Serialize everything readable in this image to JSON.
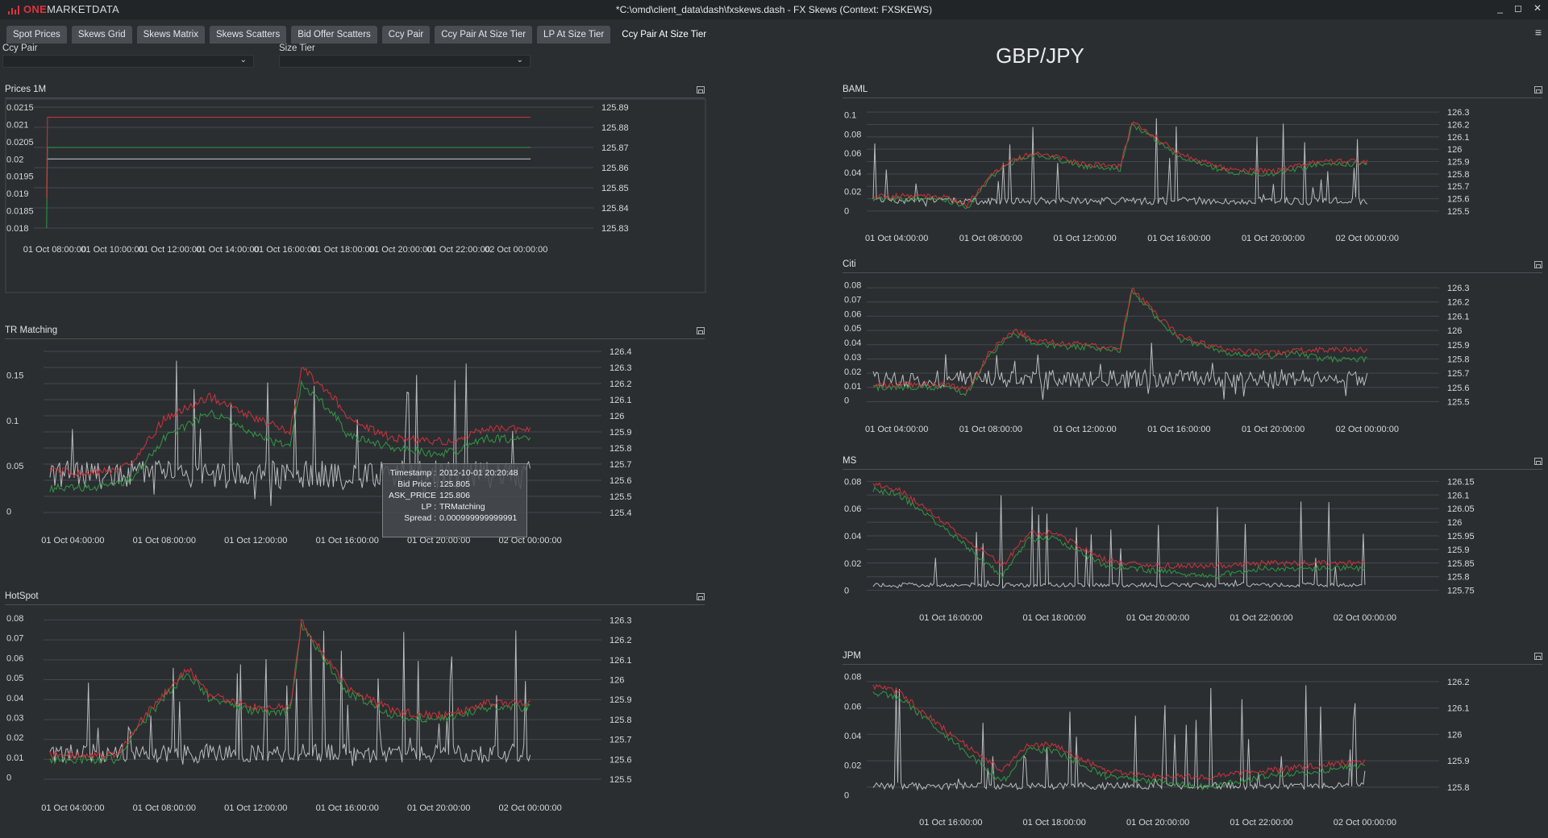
{
  "window": {
    "app_brand_one": "ONE",
    "app_brand_rest": "MARKETDATA",
    "title": "*C:\\omd\\client_data\\dash\\fxskews.dash - FX Skews (Context: FXSKEWS)",
    "controls": {
      "minimize": "_",
      "restore": "◻",
      "close": "✕"
    }
  },
  "tabs": [
    {
      "label": "Spot Prices",
      "active": false
    },
    {
      "label": "Skews Grid",
      "active": false
    },
    {
      "label": "Skews Matrix",
      "active": false
    },
    {
      "label": "Skews Scatters",
      "active": false
    },
    {
      "label": "Bid Offer Scatters",
      "active": false
    },
    {
      "label": "Ccy Pair",
      "active": false
    },
    {
      "label": "Ccy Pair At Size Tier",
      "active": false
    },
    {
      "label": "LP At Size Tier",
      "active": false
    },
    {
      "label": "Ccy Pair At Size Tier",
      "active": true
    }
  ],
  "filters": {
    "ccy_pair": {
      "label": "Ccy Pair",
      "value": ""
    },
    "size_tier": {
      "label": "Size Tier",
      "value": ""
    }
  },
  "page_title": "GBP/JPY",
  "colors": {
    "ask": "#d0323a",
    "bid": "#2f9a44",
    "spread": "#c9cbce",
    "grid": "#44484d"
  },
  "tooltip": {
    "rows": [
      {
        "key": "Timestamp :",
        "value": "2012-10-01 20:20:48"
      },
      {
        "key": "Bid Price :",
        "value": "125.805"
      },
      {
        "key": "ASK_PRICE :",
        "value": "125.806"
      },
      {
        "key": "LP :",
        "value": "TRMatching"
      },
      {
        "key": "Spread :",
        "value": "0.000999999999991"
      }
    ]
  },
  "chart_data": [
    {
      "id": "prices1m",
      "title": "Prices 1M",
      "type": "line",
      "x_ticks": [
        "01 Oct 08:00:00",
        "01 Oct 10:00:00",
        "01 Oct 12:00:00",
        "01 Oct 14:00:00",
        "01 Oct 16:00:00",
        "01 Oct 18:00:00",
        "01 Oct 20:00:00",
        "01 Oct 22:00:00",
        "02 Oct 00:00:00"
      ],
      "y_left_ticks": [
        "0.0215",
        "0.021",
        "0.0205",
        "0.02",
        "0.0195",
        "0.019",
        "0.0185",
        "0.018"
      ],
      "y_right_ticks": [
        "125.89",
        "125.88",
        "125.87",
        "125.86",
        "125.85",
        "125.84",
        "125.83"
      ],
      "y_left_range": [
        0.018,
        0.0215
      ],
      "y_right_range": [
        125.83,
        125.89
      ],
      "x_range": [
        "2012-10-01 07:30",
        "2012-10-02 01:00"
      ],
      "ask": [
        [
          "2012-10-01 07:43",
          125.845
        ],
        [
          "2012-10-01 07:45",
          125.885
        ],
        [
          "2012-10-02 00:30",
          125.885
        ]
      ],
      "bid": [
        [
          "2012-10-01 07:43",
          125.83
        ],
        [
          "2012-10-01 07:45",
          125.87
        ],
        [
          "2012-10-02 00:30",
          125.87
        ]
      ],
      "spread": [
        [
          "2012-10-01 07:43",
          0.02
        ],
        [
          "2012-10-02 00:30",
          0.02
        ]
      ]
    },
    {
      "id": "trmatching",
      "title": "TR Matching",
      "type": "line",
      "x_ticks": [
        "01 Oct 04:00:00",
        "01 Oct 08:00:00",
        "01 Oct 12:00:00",
        "01 Oct 16:00:00",
        "01 Oct 20:00:00",
        "02 Oct 00:00:00"
      ],
      "y_left_ticks": [
        "0.15",
        "0.1",
        "0.05",
        "0"
      ],
      "y_right_ticks": [
        "126.4",
        "126.3",
        "126.2",
        "126.1",
        "126",
        "125.9",
        "125.8",
        "125.7",
        "125.6",
        "125.5",
        "125.4"
      ],
      "y_left_range": [
        -0.005,
        0.18
      ],
      "y_right_range": [
        125.38,
        126.42
      ],
      "x_range": [
        "2012-10-01 03:00",
        "2012-10-02 01:00"
      ],
      "ask": [
        [
          "03:00",
          125.66
        ],
        [
          "05:00",
          125.64
        ],
        [
          "06:30",
          125.7
        ],
        [
          "08:00",
          125.98
        ],
        [
          "10:00",
          126.12
        ],
        [
          "12:00",
          125.98
        ],
        [
          "13:30",
          125.9
        ],
        [
          "14:00",
          126.3
        ],
        [
          "15:30",
          126.1
        ],
        [
          "16:00",
          125.98
        ],
        [
          "18:00",
          125.86
        ],
        [
          "20:00",
          125.84
        ],
        [
          "21:00",
          125.86
        ],
        [
          "22:00",
          125.92
        ],
        [
          "24:00",
          125.91
        ]
      ],
      "bid": [
        [
          "03:00",
          125.55
        ],
        [
          "05:00",
          125.56
        ],
        [
          "06:30",
          125.6
        ],
        [
          "08:00",
          125.86
        ],
        [
          "10:00",
          126.02
        ],
        [
          "12:00",
          125.88
        ],
        [
          "13:30",
          125.8
        ],
        [
          "14:00",
          126.2
        ],
        [
          "15:30",
          126.0
        ],
        [
          "16:00",
          125.88
        ],
        [
          "18:00",
          125.8
        ],
        [
          "20:00",
          125.76
        ],
        [
          "21:00",
          125.79
        ],
        [
          "22:00",
          125.86
        ],
        [
          "24:00",
          125.85
        ]
      ],
      "spread_level": 0.04,
      "spread_max": 0.17
    },
    {
      "id": "hotspot",
      "title": "HotSpot",
      "type": "line",
      "x_ticks": [
        "01 Oct 04:00:00",
        "01 Oct 08:00:00",
        "01 Oct 12:00:00",
        "01 Oct 16:00:00",
        "01 Oct 20:00:00",
        "02 Oct 00:00:00"
      ],
      "y_left_ticks": [
        "0.08",
        "0.07",
        "0.06",
        "0.05",
        "0.04",
        "0.03",
        "0.02",
        "0.01",
        "0"
      ],
      "y_right_ticks": [
        "126.3",
        "126.2",
        "126.1",
        "126",
        "125.9",
        "125.8",
        "125.7",
        "125.6",
        "125.5"
      ],
      "y_left_range": [
        -0.003,
        0.082
      ],
      "y_right_range": [
        125.48,
        126.33
      ],
      "x_range": [
        "2012-10-01 03:00",
        "2012-10-02 01:00"
      ],
      "ask": [
        [
          "03:00",
          125.62
        ],
        [
          "06:00",
          125.62
        ],
        [
          "07:00",
          125.8
        ],
        [
          "09:00",
          126.06
        ],
        [
          "10:00",
          125.92
        ],
        [
          "12:00",
          125.86
        ],
        [
          "13:30",
          125.86
        ],
        [
          "14:00",
          126.3
        ],
        [
          "15:00",
          126.12
        ],
        [
          "16:00",
          125.96
        ],
        [
          "18:00",
          125.84
        ],
        [
          "20:00",
          125.82
        ],
        [
          "21:00",
          125.84
        ],
        [
          "22:00",
          125.88
        ],
        [
          "24:00",
          125.88
        ]
      ],
      "bid": [
        [
          "03:00",
          125.6
        ],
        [
          "06:00",
          125.6
        ],
        [
          "07:00",
          125.78
        ],
        [
          "09:00",
          126.04
        ],
        [
          "10:00",
          125.9
        ],
        [
          "12:00",
          125.84
        ],
        [
          "13:30",
          125.84
        ],
        [
          "14:00",
          126.28
        ],
        [
          "15:00",
          126.1
        ],
        [
          "16:00",
          125.94
        ],
        [
          "18:00",
          125.82
        ],
        [
          "20:00",
          125.8
        ],
        [
          "21:00",
          125.82
        ],
        [
          "22:00",
          125.86
        ],
        [
          "24:00",
          125.86
        ]
      ],
      "spread_level": 0.012,
      "spread_max": 0.075
    },
    {
      "id": "baml",
      "title": "BAML",
      "type": "line",
      "x_ticks": [
        "01 Oct 04:00:00",
        "01 Oct 08:00:00",
        "01 Oct 12:00:00",
        "01 Oct 16:00:00",
        "01 Oct 20:00:00",
        "02 Oct 00:00:00"
      ],
      "y_left_ticks": [
        "0.1",
        "0.08",
        "0.06",
        "0.04",
        "0.02",
        "0"
      ],
      "y_right_ticks": [
        "126.3",
        "126.2",
        "126.1",
        "126",
        "125.9",
        "125.8",
        "125.7",
        "125.6",
        "125.5"
      ],
      "y_left_range": [
        -0.003,
        0.108
      ],
      "y_right_range": [
        125.48,
        126.34
      ],
      "x_range": [
        "2012-10-01 03:00",
        "2012-10-02 01:00"
      ],
      "ask": [
        [
          "03:00",
          125.62
        ],
        [
          "06:00",
          125.62
        ],
        [
          "07:00",
          125.55
        ],
        [
          "08:00",
          125.8
        ],
        [
          "09:00",
          125.92
        ],
        [
          "10:00",
          125.98
        ],
        [
          "12:00",
          125.88
        ],
        [
          "13:30",
          125.86
        ],
        [
          "14:00",
          126.22
        ],
        [
          "15:00",
          126.1
        ],
        [
          "16:00",
          125.96
        ],
        [
          "18:00",
          125.84
        ],
        [
          "20:00",
          125.82
        ],
        [
          "21:00",
          125.86
        ],
        [
          "22:00",
          125.9
        ],
        [
          "24:00",
          125.9
        ]
      ],
      "bid": [
        [
          "03:00",
          125.6
        ],
        [
          "06:00",
          125.6
        ],
        [
          "07:00",
          125.52
        ],
        [
          "08:00",
          125.78
        ],
        [
          "09:00",
          125.9
        ],
        [
          "10:00",
          125.96
        ],
        [
          "12:00",
          125.86
        ],
        [
          "13:30",
          125.84
        ],
        [
          "14:00",
          126.2
        ],
        [
          "15:00",
          126.08
        ],
        [
          "16:00",
          125.94
        ],
        [
          "18:00",
          125.82
        ],
        [
          "20:00",
          125.8
        ],
        [
          "21:00",
          125.84
        ],
        [
          "22:00",
          125.88
        ],
        [
          "24:00",
          125.88
        ]
      ],
      "spread_level": 0.01,
      "spread_max": 0.1
    },
    {
      "id": "citi",
      "title": "Citi",
      "type": "line",
      "x_ticks": [
        "01 Oct 04:00:00",
        "01 Oct 08:00:00",
        "01 Oct 12:00:00",
        "01 Oct 16:00:00",
        "01 Oct 20:00:00",
        "02 Oct 00:00:00"
      ],
      "y_left_ticks": [
        "0.08",
        "0.07",
        "0.06",
        "0.05",
        "0.04",
        "0.03",
        "0.02",
        "0.01",
        "0"
      ],
      "y_right_ticks": [
        "126.3",
        "126.2",
        "126.1",
        "126",
        "125.9",
        "125.8",
        "125.7",
        "125.6",
        "125.5"
      ],
      "y_left_range": [
        -0.003,
        0.082
      ],
      "y_right_range": [
        125.48,
        126.34
      ],
      "x_range": [
        "2012-10-01 03:00",
        "2012-10-02 01:00"
      ],
      "ask": [
        [
          "03:00",
          125.62
        ],
        [
          "06:00",
          125.62
        ],
        [
          "07:00",
          125.58
        ],
        [
          "08:00",
          125.86
        ],
        [
          "09:00",
          126.0
        ],
        [
          "10:00",
          125.92
        ],
        [
          "12:00",
          125.9
        ],
        [
          "13:30",
          125.88
        ],
        [
          "14:00",
          126.3
        ],
        [
          "15:00",
          126.12
        ],
        [
          "16:00",
          125.96
        ],
        [
          "18:00",
          125.86
        ],
        [
          "20:00",
          125.84
        ],
        [
          "21:00",
          125.86
        ],
        [
          "22:00",
          125.86
        ],
        [
          "24:00",
          125.86
        ]
      ],
      "bid": [
        [
          "03:00",
          125.6
        ],
        [
          "06:00",
          125.6
        ],
        [
          "07:00",
          125.56
        ],
        [
          "08:00",
          125.84
        ],
        [
          "09:00",
          125.98
        ],
        [
          "10:00",
          125.9
        ],
        [
          "12:00",
          125.88
        ],
        [
          "13:30",
          125.86
        ],
        [
          "14:00",
          126.28
        ],
        [
          "15:00",
          126.1
        ],
        [
          "16:00",
          125.94
        ],
        [
          "18:00",
          125.84
        ],
        [
          "20:00",
          125.82
        ],
        [
          "21:00",
          125.84
        ],
        [
          "22:00",
          125.8
        ],
        [
          "24:00",
          125.8
        ]
      ],
      "spread_level": 0.015,
      "spread_max": 0.04
    },
    {
      "id": "ms",
      "title": "MS",
      "type": "line",
      "x_ticks": [
        "01 Oct 16:00:00",
        "01 Oct 18:00:00",
        "01 Oct 20:00:00",
        "01 Oct 22:00:00",
        "02 Oct 00:00:00"
      ],
      "y_left_ticks": [
        "0.08",
        "0.06",
        "0.04",
        "0.02",
        "0"
      ],
      "y_right_ticks": [
        "126.15",
        "126.1",
        "126.05",
        "126",
        "125.95",
        "125.9",
        "125.85",
        "125.8",
        "125.75"
      ],
      "y_left_range": [
        -0.002,
        0.082
      ],
      "y_right_range": [
        125.74,
        126.16
      ],
      "x_range": [
        "2012-10-01 14:30",
        "2012-10-02 00:30"
      ],
      "ask": [
        [
          "14:30",
          126.14
        ],
        [
          "15:00",
          126.12
        ],
        [
          "16:00",
          125.98
        ],
        [
          "17:00",
          125.84
        ],
        [
          "17:30",
          125.96
        ],
        [
          "18:00",
          125.96
        ],
        [
          "19:00",
          125.86
        ],
        [
          "20:00",
          125.84
        ],
        [
          "21:00",
          125.84
        ],
        [
          "22:00",
          125.85
        ],
        [
          "24:00",
          125.85
        ]
      ],
      "bid": [
        [
          "14:30",
          126.12
        ],
        [
          "15:00",
          126.1
        ],
        [
          "16:00",
          125.96
        ],
        [
          "17:00",
          125.8
        ],
        [
          "17:30",
          125.94
        ],
        [
          "18:00",
          125.94
        ],
        [
          "19:00",
          125.84
        ],
        [
          "20:00",
          125.82
        ],
        [
          "21:00",
          125.8
        ],
        [
          "22:00",
          125.83
        ],
        [
          "24:00",
          125.83
        ]
      ],
      "spread_level": 0.004,
      "spread_max": 0.07
    },
    {
      "id": "jpm",
      "title": "JPM",
      "type": "line",
      "x_ticks": [
        "01 Oct 16:00:00",
        "01 Oct 18:00:00",
        "01 Oct 20:00:00",
        "01 Oct 22:00:00",
        "02 Oct 00:00:00"
      ],
      "y_left_ticks": [
        "0.08",
        "0.06",
        "0.04",
        "0.02",
        "0"
      ],
      "y_right_ticks": [
        "126.2",
        "126.1",
        "126",
        "125.9",
        "125.8"
      ],
      "y_left_range": [
        -0.002,
        0.082
      ],
      "y_right_range": [
        125.76,
        126.23
      ],
      "x_range": [
        "2012-10-01 14:30",
        "2012-10-02 00:30"
      ],
      "ask": [
        [
          "14:30",
          126.18
        ],
        [
          "15:00",
          126.16
        ],
        [
          "16:00",
          126.0
        ],
        [
          "17:00",
          125.86
        ],
        [
          "17:30",
          125.96
        ],
        [
          "18:00",
          125.96
        ],
        [
          "19:00",
          125.86
        ],
        [
          "20:00",
          125.84
        ],
        [
          "21:00",
          125.84
        ],
        [
          "22:00",
          125.86
        ],
        [
          "24:00",
          125.9
        ]
      ],
      "bid": [
        [
          "14:30",
          126.16
        ],
        [
          "15:00",
          126.14
        ],
        [
          "16:00",
          125.98
        ],
        [
          "17:00",
          125.82
        ],
        [
          "17:30",
          125.94
        ],
        [
          "18:00",
          125.94
        ],
        [
          "19:00",
          125.84
        ],
        [
          "20:00",
          125.82
        ],
        [
          "21:00",
          125.8
        ],
        [
          "22:00",
          125.84
        ],
        [
          "24:00",
          125.88
        ]
      ],
      "spread_level": 0.006,
      "spread_max": 0.075
    }
  ]
}
